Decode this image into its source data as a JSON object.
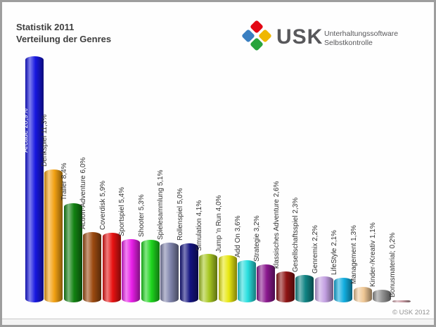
{
  "header": {
    "title_line1": "Statistik 2011",
    "title_line2": "Verteilung der Genres"
  },
  "logo": {
    "wordmark": "USK",
    "subtitle_line1": "Unterhaltungssoftware",
    "subtitle_line2": "Selbstkontrolle",
    "diamond_colors": {
      "top": "#e30613",
      "left": "#3a7fc1",
      "right": "#efb700",
      "bottom": "#28a43c"
    }
  },
  "footer": {
    "copyright": "© USK 2012"
  },
  "chart_data": {
    "type": "bar",
    "style": "3d-cylinder",
    "title": "Statistik 2011 — Verteilung der Genres",
    "xlabel": "",
    "ylabel": "",
    "ylim": [
      0,
      21
    ],
    "grid": false,
    "legend": "none",
    "value_suffix": "%",
    "categories": [
      "Arcade",
      "Denkspiel",
      "Trailer",
      "Action-Adventure",
      "Coverdisk",
      "Sportspiel",
      "Shooter",
      "Spielesammlung",
      "Rollenspiel",
      "Simulation",
      "Jump 'n Run",
      "Add On",
      "Strategie",
      "klassisches Adventure",
      "Gesellschaftsspiel",
      "Genremix",
      "LifeStyle",
      "Management",
      "Kinder-/Kreativ",
      "Bonusmaterial"
    ],
    "values": [
      20.9,
      11.3,
      8.4,
      6.0,
      5.9,
      5.4,
      5.3,
      5.1,
      5.0,
      4.1,
      4.0,
      3.6,
      3.2,
      2.6,
      2.3,
      2.2,
      2.1,
      1.3,
      1.1,
      0.2
    ],
    "labels": [
      "Arcade 20,9%",
      "Denkspiel 11,3%",
      "Trailer 8,4%",
      "Action-Adventure 6,0%",
      "Coverdisk 5,9%",
      "Sportspiel 5,4%",
      "Shooter 5,3%",
      "Spielesammlung 5,1%",
      "Rollenspiel 5,0%",
      "Simulation 4,1%",
      "Jump 'n Run 4,0%",
      "Add On 3,6%",
      "Strategie 3,2%",
      "klassisches Adventure 2,6%",
      "Gesellschaftsspiel 2,3%",
      "Genremix 2,2%",
      "LifeStyle 2,1%",
      "Management 1,3%",
      "Kinder-/Kreativ 1,1%",
      "Bonusmaterial; 0,2%"
    ],
    "bar_colors": [
      "#1717e0",
      "#f2a113",
      "#128212",
      "#9c4a10",
      "#e81212",
      "#e81fe8",
      "#1ed51e",
      "#8084ac",
      "#131380",
      "#a8c822",
      "#e8e812",
      "#29dfdf",
      "#8a188e",
      "#8e1414",
      "#108484",
      "#c3a0e2",
      "#12aee0",
      "#efc795",
      "#8f8f8f",
      "#c79aa2"
    ],
    "label_placement": "rotated above bar (first label inside bar, white)"
  }
}
